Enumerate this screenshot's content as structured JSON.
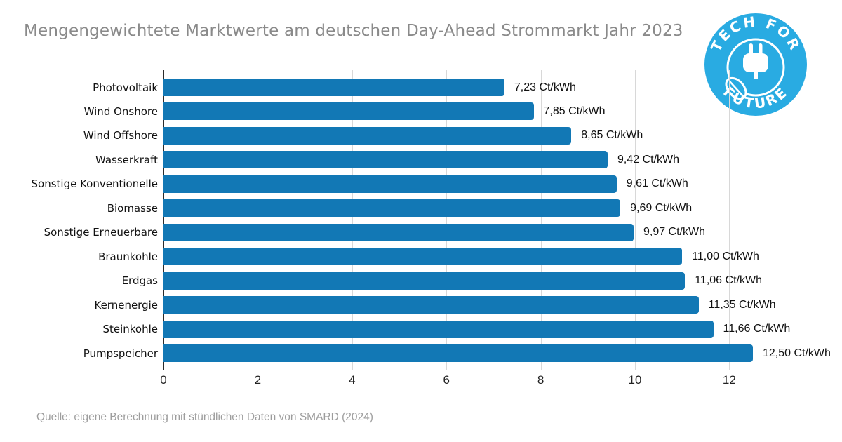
{
  "title": "Mengengewichtete Marktwerte am deutschen Day-Ahead Strommarkt Jahr 2023",
  "source": "Quelle: eigene Berechnung mit stündlichen Daten von SMARD (2024)",
  "logo": {
    "line1": "TECH  FOR",
    "line2": "FUTURE",
    "color": "#29abe2"
  },
  "chart_data": {
    "type": "bar",
    "orientation": "horizontal",
    "title": "Mengengewichtete Marktwerte am deutschen Day-Ahead Strommarkt Jahr 2023",
    "unit": "Ct/kWh",
    "categories": [
      "Photovoltaik",
      "Wind Onshore",
      "Wind Offshore",
      "Wasserkraft",
      "Sonstige Konventionelle",
      "Biomasse",
      "Sonstige Erneuerbare",
      "Braunkohle",
      "Erdgas",
      "Kernenergie",
      "Steinkohle",
      "Pumpspeicher"
    ],
    "values": [
      7.23,
      7.85,
      8.65,
      9.42,
      9.61,
      9.69,
      9.97,
      11.0,
      11.06,
      11.35,
      11.66,
      12.5
    ],
    "value_labels": [
      "7,23 Ct/kWh",
      "7,85 Ct/kWh",
      "8,65 Ct/kWh",
      "9,42 Ct/kWh",
      "9,61 Ct/kWh",
      "9,69 Ct/kWh",
      "9,97 Ct/kWh",
      "11,00 Ct/kWh",
      "11,06 Ct/kWh",
      "11,35 Ct/kWh",
      "11,66 Ct/kWh",
      "12,50 Ct/kWh"
    ],
    "xticks": [
      0,
      2,
      4,
      6,
      8,
      10,
      12
    ],
    "xlim": [
      0,
      13.45
    ],
    "bar_color": "#1278b5",
    "grid": true,
    "gridline_color": "#d8d8d8",
    "axis_color": "#2b2b2b",
    "legend": "none"
  }
}
